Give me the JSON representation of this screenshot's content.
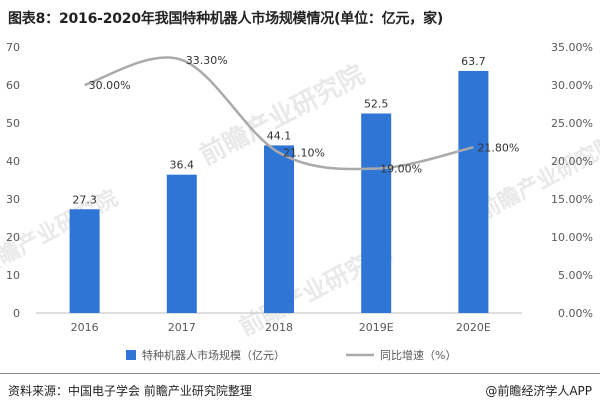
{
  "title": "图表8：2016-2020年我国特种机器人市场规模情况(单位：亿元，家)",
  "chart_data": {
    "type": "bar",
    "categories": [
      "2016",
      "2017",
      "2018",
      "2019E",
      "2020E"
    ],
    "series": [
      {
        "name": "特种机器人市场规模（亿元）",
        "type": "bar",
        "axis": "left",
        "values": [
          27.3,
          36.4,
          44.1,
          52.5,
          63.7
        ],
        "value_labels": [
          "27.3",
          "36.4",
          "44.1",
          "52.5",
          "63.7"
        ],
        "color": "#2e75d6"
      },
      {
        "name": "同比增速（%）",
        "type": "line",
        "axis": "right",
        "values": [
          30.0,
          33.3,
          21.1,
          19.0,
          21.8
        ],
        "value_labels": [
          "30.00%",
          "33.30%",
          "21.10%",
          "19.00%",
          "21.80%"
        ],
        "color": "#aaaaaa",
        "smooth": true
      }
    ],
    "left_axis": {
      "ylim": [
        0,
        70
      ],
      "ticks": [
        0,
        10,
        20,
        30,
        40,
        50,
        60,
        70
      ],
      "tick_labels": [
        "0",
        "10",
        "20",
        "30",
        "40",
        "50",
        "60",
        "70"
      ]
    },
    "right_axis": {
      "ylim": [
        0,
        35
      ],
      "ticks": [
        0,
        5,
        10,
        15,
        20,
        25,
        30,
        35
      ],
      "tick_labels": [
        "0.00%",
        "5.00%",
        "10.00%",
        "15.00%",
        "20.00%",
        "25.00%",
        "30.00%",
        "35.00%"
      ]
    },
    "grid": false,
    "legend_position": "bottom"
  },
  "source": "资料来源：中国电子学会 前瞻产业研究院整理",
  "credit": "@前瞻经济学人APP",
  "watermark": "前瞻产业研究院",
  "colors": {
    "bar": "#2e75d6",
    "line": "#aaaaaa",
    "axis": "#bfbfbf",
    "text": "#595959"
  }
}
